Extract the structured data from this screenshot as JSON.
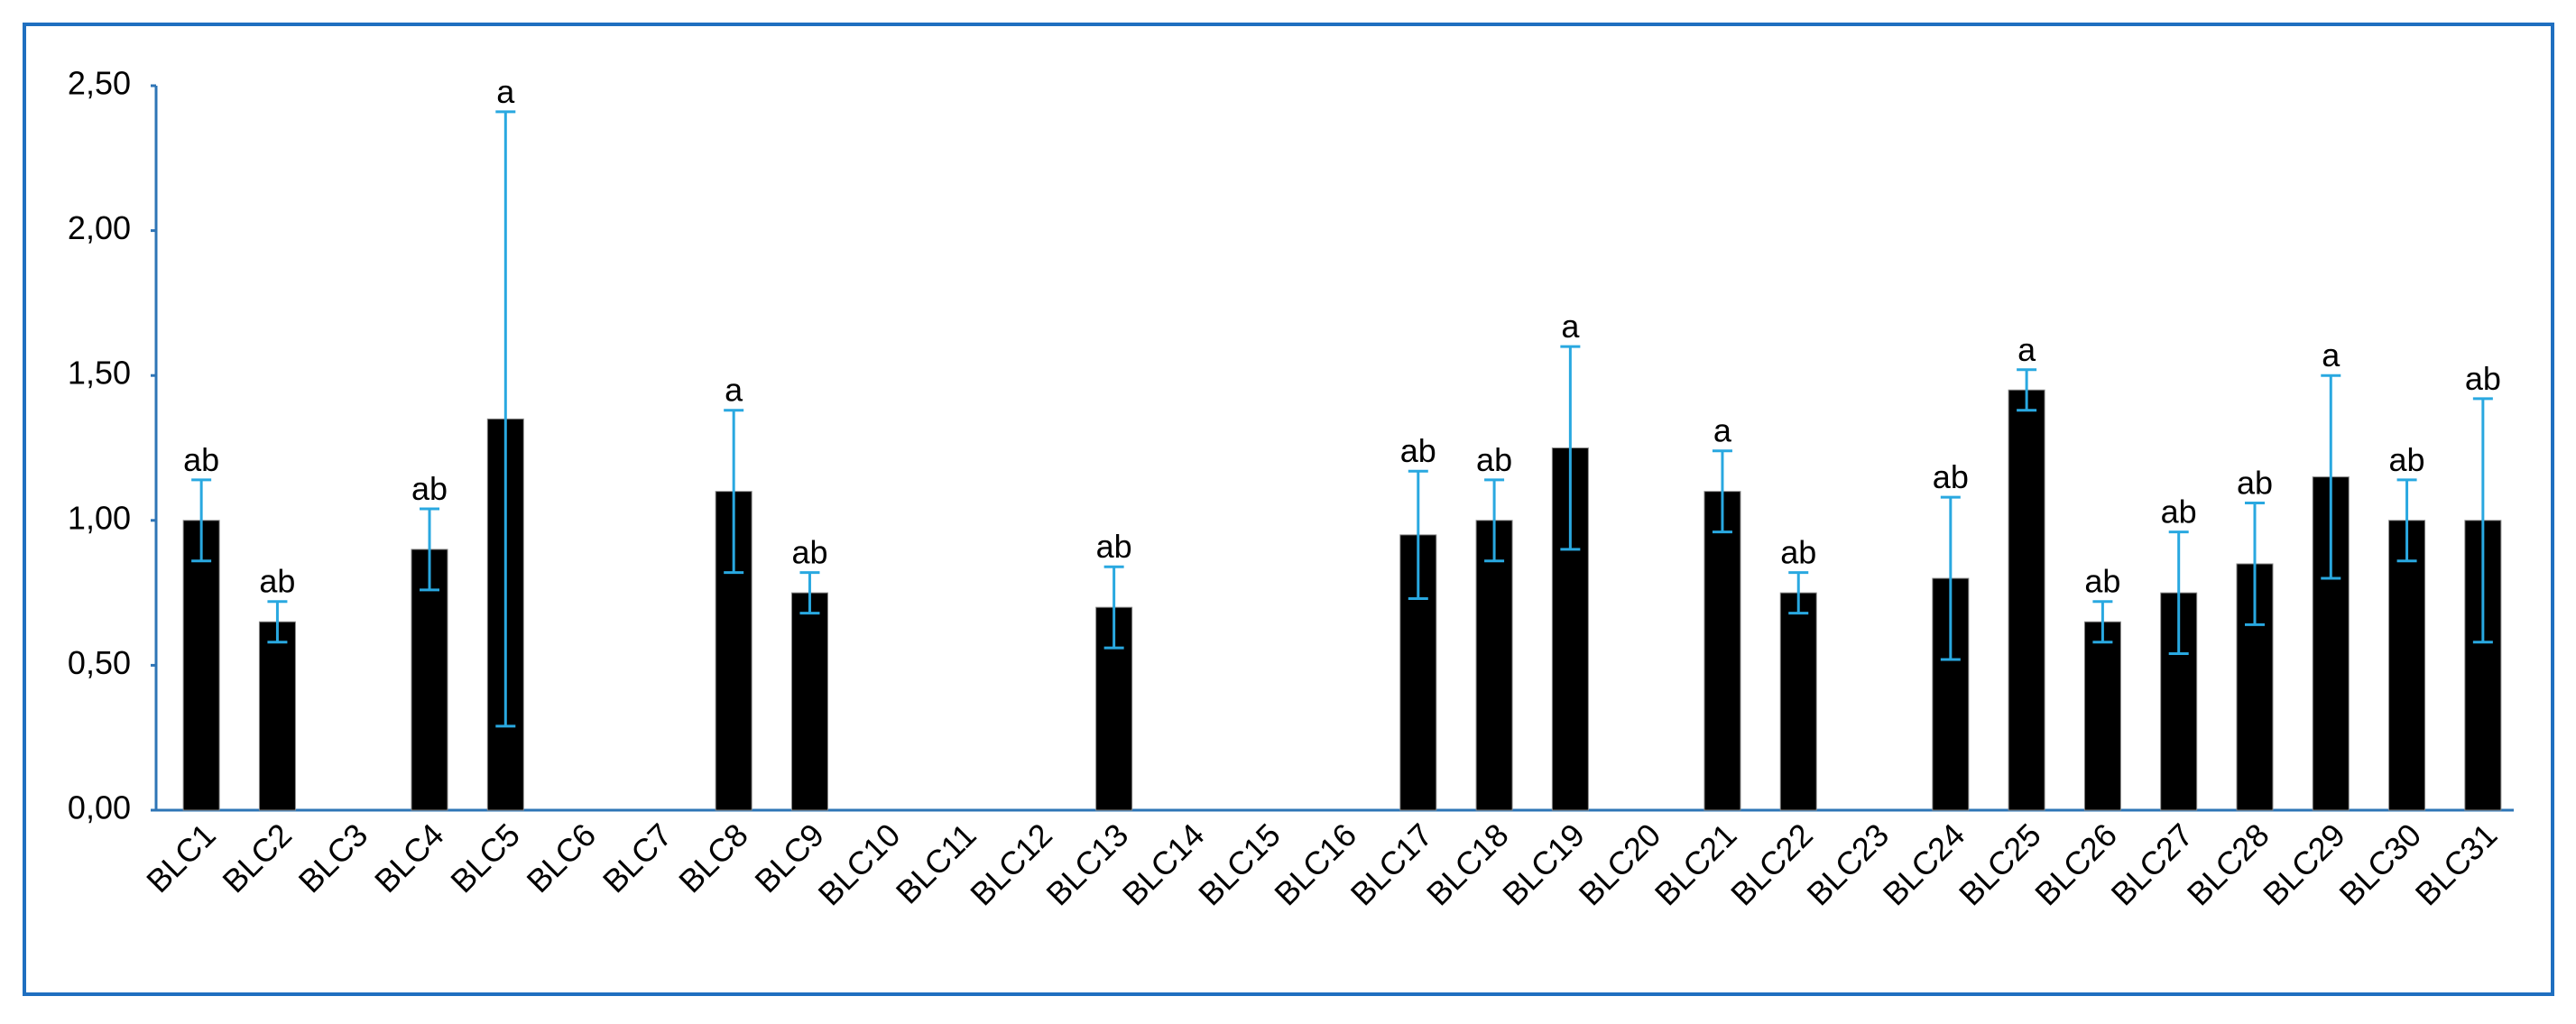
{
  "chart_data": {
    "type": "bar",
    "categories": [
      "BLC1",
      "BLC2",
      "BLC3",
      "BLC4",
      "BLC5",
      "BLC6",
      "BLC7",
      "BLC8",
      "BLC9",
      "BLC10",
      "BLC11",
      "BLC12",
      "BLC13",
      "BLC14",
      "BLC15",
      "BLC16",
      "BLC17",
      "BLC18",
      "BLC19",
      "BLC20",
      "BLC21",
      "BLC22",
      "BLC23",
      "BLC24",
      "BLC25",
      "BLC26",
      "BLC27",
      "BLC28",
      "BLC29",
      "BLC30",
      "BLC31"
    ],
    "values": [
      1.0,
      0.65,
      null,
      0.9,
      1.35,
      null,
      null,
      1.1,
      0.75,
      null,
      null,
      null,
      0.7,
      null,
      null,
      null,
      0.95,
      1.0,
      1.25,
      null,
      1.1,
      0.75,
      null,
      0.8,
      1.45,
      0.65,
      0.75,
      0.85,
      1.15,
      1.0,
      1.0
    ],
    "errors": [
      0.14,
      0.07,
      null,
      0.14,
      1.06,
      null,
      null,
      0.28,
      0.07,
      null,
      null,
      null,
      0.14,
      null,
      null,
      null,
      0.22,
      0.14,
      0.35,
      null,
      0.14,
      0.07,
      null,
      0.28,
      0.07,
      0.07,
      0.21,
      0.21,
      0.35,
      0.14,
      0.42
    ],
    "letters": [
      "ab",
      "ab",
      null,
      "ab",
      "a",
      null,
      null,
      "a",
      "ab",
      null,
      null,
      null,
      "ab",
      null,
      null,
      null,
      "ab",
      "ab",
      "a",
      null,
      "a",
      "ab",
      null,
      "ab",
      "a",
      "ab",
      "ab",
      "ab",
      "a",
      "ab",
      "ab"
    ],
    "color": "#000000",
    "error_color": "#29a8e0",
    "ylim": [
      0,
      2.5
    ],
    "yticks": [
      {
        "value": 0,
        "label": "0,00"
      },
      {
        "value": 0.5,
        "label": "0,50"
      },
      {
        "value": 1,
        "label": "1,00"
      },
      {
        "value": 1.5,
        "label": "1,50"
      },
      {
        "value": 2,
        "label": "2,00"
      },
      {
        "value": 2.5,
        "label": "2,50"
      }
    ]
  }
}
